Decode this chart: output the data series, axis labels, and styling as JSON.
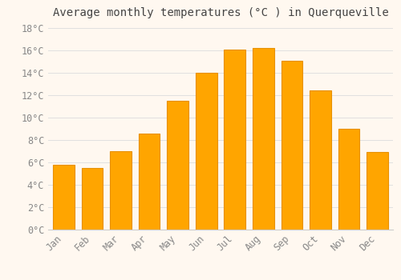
{
  "title": "Average monthly temperatures (°C ) in Querqueville",
  "months": [
    "Jan",
    "Feb",
    "Mar",
    "Apr",
    "May",
    "Jun",
    "Jul",
    "Aug",
    "Sep",
    "Oct",
    "Nov",
    "Dec"
  ],
  "values": [
    5.8,
    5.5,
    7.0,
    8.6,
    11.5,
    14.0,
    16.1,
    16.2,
    15.1,
    12.4,
    9.0,
    6.9
  ],
  "bar_color_face": "#FFA500",
  "bar_color_edge": "#E89000",
  "background_color": "#FFF8F0",
  "grid_color": "#E0E0E0",
  "tick_label_color": "#888888",
  "title_color": "#444444",
  "ylim": [
    0,
    18.5
  ],
  "yticks": [
    0,
    2,
    4,
    6,
    8,
    10,
    12,
    14,
    16,
    18
  ],
  "ytick_labels": [
    "0°C",
    "2°C",
    "4°C",
    "6°C",
    "8°C",
    "10°C",
    "12°C",
    "14°C",
    "16°C",
    "18°C"
  ],
  "title_fontsize": 10,
  "tick_fontsize": 8.5,
  "font_family": "monospace"
}
